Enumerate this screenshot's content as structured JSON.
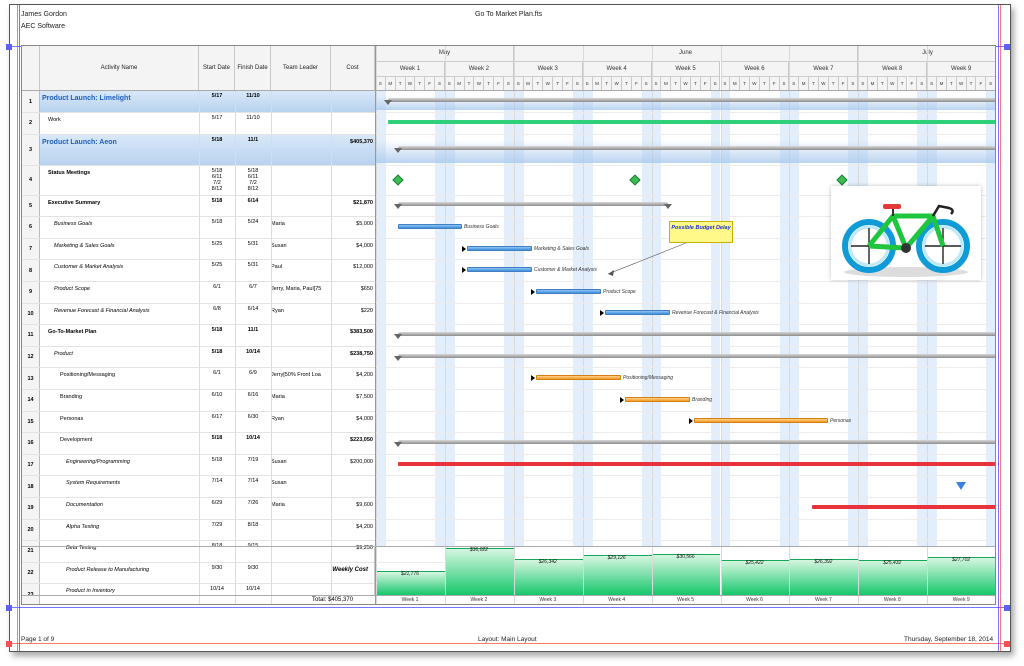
{
  "header": {
    "author": "James Gordon",
    "company": "AEC Software",
    "title": "Go To Market Plan.fts"
  },
  "footer": {
    "page": "Page 1 of 9",
    "layout": "Layout: Main Layout",
    "date": "Thursday, September 18, 2014"
  },
  "columns": {
    "activity": "Activity Name",
    "start": "Start Date",
    "finish": "Finish Date",
    "leader": "Team Leader",
    "cost": "Cost"
  },
  "months": [
    "May",
    "June",
    "July"
  ],
  "weeks": [
    "Week 1",
    "Week 2",
    "Week 3",
    "Week 4",
    "Week 5",
    "Week 6",
    "Week 7",
    "Week 8",
    "Week 9"
  ],
  "day_letters": [
    "S",
    "M",
    "T",
    "W",
    "T",
    "F",
    "S"
  ],
  "rows": [
    {
      "n": "1",
      "name": "Product Launch: Limelight",
      "start": "5/17",
      "finish": "11/10",
      "leader": "",
      "cost": ""
    },
    {
      "n": "2",
      "name": "Work",
      "start": "5/17",
      "finish": "11/10",
      "leader": "",
      "cost": ""
    },
    {
      "n": "3",
      "name": "Product Launch: Aeon",
      "start": "5/18",
      "finish": "11/1",
      "leader": "",
      "cost": "$405,370"
    },
    {
      "n": "4",
      "name": "Status Meetings",
      "start": "5/18\n6/11\n7/2\n8/12",
      "finish": "5/18\n6/11\n7/2\n8/12",
      "leader": "",
      "cost": ""
    },
    {
      "n": "5",
      "name": "Executive Summary",
      "start": "5/18",
      "finish": "6/14",
      "leader": "",
      "cost": "$21,870"
    },
    {
      "n": "6",
      "name": "Business Goals",
      "start": "5/18",
      "finish": "5/24",
      "leader": "Maria",
      "cost": "$5,000"
    },
    {
      "n": "7",
      "name": "Marketing & Sales Goals",
      "start": "5/25",
      "finish": "5/31",
      "leader": "Susan",
      "cost": "$4,000"
    },
    {
      "n": "8",
      "name": "Customer & Market Analysis",
      "start": "5/25",
      "finish": "5/31",
      "leader": "Paul",
      "cost": "$12,000"
    },
    {
      "n": "9",
      "name": "Product Scope",
      "start": "6/1",
      "finish": "6/7",
      "leader": "Jerry, Maria, Paul[75",
      "cost": "$650"
    },
    {
      "n": "10",
      "name": "Revenue Forecast & Financial Analysis",
      "start": "6/8",
      "finish": "6/14",
      "leader": "Ryan",
      "cost": "$220"
    },
    {
      "n": "11",
      "name": "Go-To-Market Plan",
      "start": "5/18",
      "finish": "11/1",
      "leader": "",
      "cost": "$383,500"
    },
    {
      "n": "12",
      "name": "Product",
      "start": "5/18",
      "finish": "10/14",
      "leader": "",
      "cost": "$238,750"
    },
    {
      "n": "13",
      "name": "Positioning/Messaging",
      "start": "6/1",
      "finish": "6/9",
      "leader": "Jerry[50% Front Loa",
      "cost": "$4,200"
    },
    {
      "n": "14",
      "name": "Branding",
      "start": "6/10",
      "finish": "6/16",
      "leader": "Maria",
      "cost": "$7,500"
    },
    {
      "n": "15",
      "name": "Personas",
      "start": "6/17",
      "finish": "6/30",
      "leader": "Ryan",
      "cost": "$4,000"
    },
    {
      "n": "16",
      "name": "Development",
      "start": "5/18",
      "finish": "10/14",
      "leader": "",
      "cost": "$223,050"
    },
    {
      "n": "17",
      "name": "Engineering/Programming",
      "start": "5/18",
      "finish": "7/19",
      "leader": "Susan",
      "cost": "$200,000"
    },
    {
      "n": "18",
      "name": "System Requirements",
      "start": "7/14",
      "finish": "7/14",
      "leader": "Susan",
      "cost": ""
    },
    {
      "n": "19",
      "name": "Documentation",
      "start": "6/29",
      "finish": "7/26",
      "leader": "Maria",
      "cost": "$9,600"
    },
    {
      "n": "20",
      "name": "Alpha Testing",
      "start": "7/29",
      "finish": "8/18",
      "leader": "",
      "cost": "$4,200"
    },
    {
      "n": "21",
      "name": "Beta Testing",
      "start": "8/18",
      "finish": "9/15",
      "leader": "",
      "cost": "$9,250"
    },
    {
      "n": "22",
      "name": "Product Release to Manufacturing",
      "start": "9/30",
      "finish": "9/30",
      "leader": "",
      "cost": ""
    },
    {
      "n": "23",
      "name": "Product in Inventory",
      "start": "10/14",
      "finish": "10/14",
      "leader": "",
      "cost": ""
    }
  ],
  "bar_labels": [
    "Business Goals",
    "Marketing & Sales Goals",
    "Customer & Market Analysis",
    "Product Scope",
    "Revenue Forecast & Financial Analysis",
    "Positioning/Messaging",
    "Branding",
    "Personas"
  ],
  "callout": "Possible Budget Delay",
  "weekly_cost_label": "Weekly Cost",
  "total": "Total: $405,370",
  "weekly_costs": [
    "$21,776",
    "$36,022",
    "$26,342",
    "$29,126",
    "$30,566",
    "$25,422",
    "$26,392",
    "$25,432",
    "$27,702"
  ],
  "colors": {
    "summary_band": "#c9def4",
    "title_blue": "#1e5fbf",
    "cost_green": "#16c76b",
    "task_blue": "#3f8fdc",
    "task_orange": "#f29a23",
    "task_red": "#e8323c"
  }
}
